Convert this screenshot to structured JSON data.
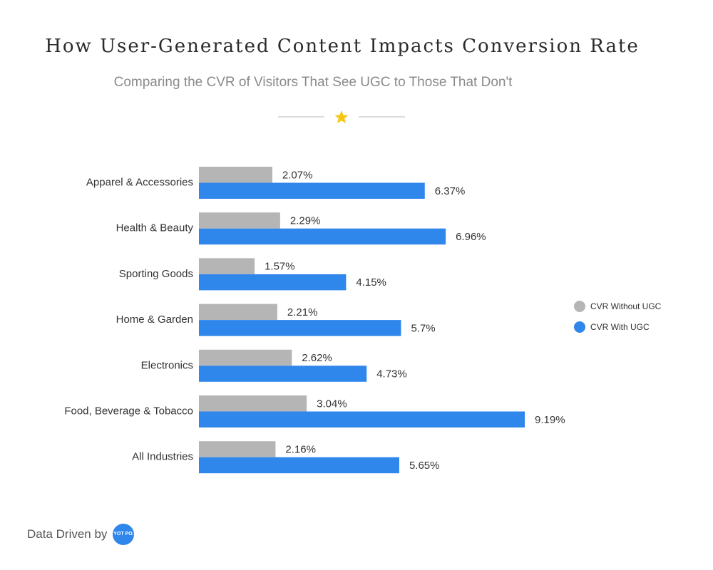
{
  "header": {
    "title": "How User-Generated Content Impacts Conversion Rate",
    "subtitle": "Comparing the CVR of Visitors That See UGC to Those That Don't"
  },
  "divider": {
    "icon": "star-icon",
    "color": "#f5c518"
  },
  "footer": {
    "text": "Data Driven by",
    "logo_text": "YOT PO."
  },
  "chart_data": {
    "type": "bar",
    "orientation": "horizontal",
    "categories": [
      "Apparel & Accessories",
      "Health & Beauty",
      "Sporting Goods",
      "Home & Garden",
      "Electronics",
      "Food, Beverage & Tobacco",
      "All Industries"
    ],
    "series": [
      {
        "name": "CVR Without UGC",
        "color": "#b5b5b5",
        "values": [
          2.07,
          2.29,
          1.57,
          2.21,
          2.62,
          3.04,
          2.16
        ],
        "labels": [
          "2.07%",
          "2.29%",
          "1.57%",
          "2.21%",
          "2.62%",
          "3.04%",
          "2.16%"
        ]
      },
      {
        "name": "CVR With UGC",
        "color": "#2f86eb",
        "values": [
          6.37,
          6.96,
          4.15,
          5.7,
          4.73,
          9.19,
          5.65
        ],
        "labels": [
          "6.37%",
          "6.96%",
          "4.15%",
          "5.7%",
          "4.73%",
          "9.19%",
          "5.65%"
        ]
      }
    ],
    "title": "How User-Generated Content Impacts Conversion Rate",
    "subtitle": "Comparing the CVR of Visitors That See UGC to Those That Don't",
    "xlim": [
      0,
      9.19
    ],
    "grid": false,
    "legend": "right"
  }
}
